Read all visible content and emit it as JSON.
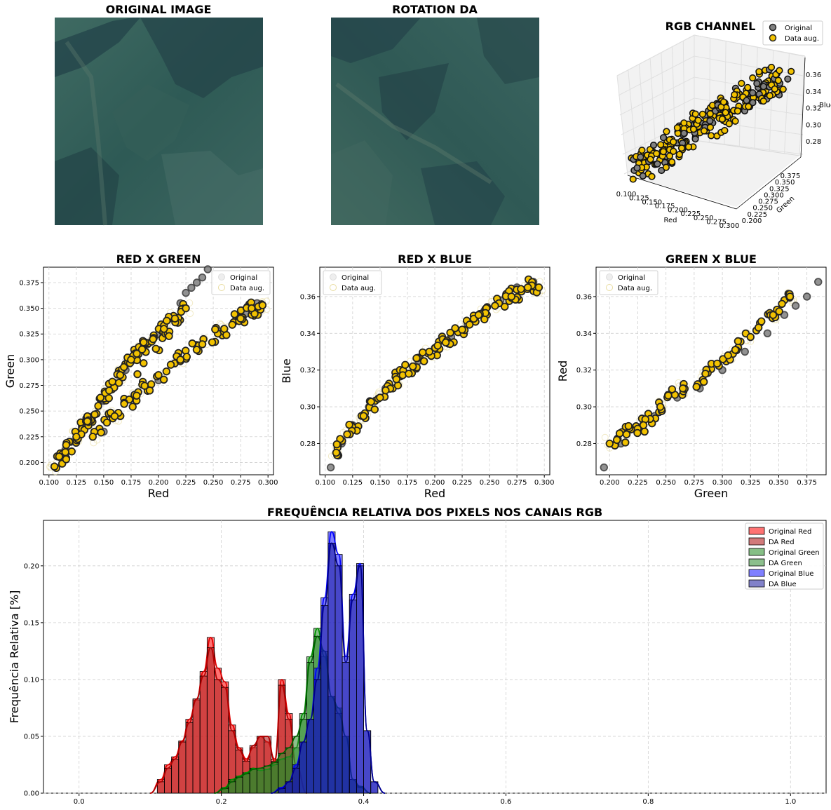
{
  "images": {
    "original_title": "ORIGINAL IMAGE",
    "rotation_title": "ROTATION DA"
  },
  "colors": {
    "original_marker": "#808080",
    "augmented_marker": "#f2c200",
    "marker_edge": "#000000",
    "red": "#ff0000",
    "red_da": "#b22222",
    "green": "#228b22",
    "green_da": "#2e8b2e",
    "blue": "#0000ff",
    "blue_da": "#1a1a9c",
    "grid": "#d0d0d0"
  },
  "chart_data": [
    {
      "type": "scatter3d",
      "title": "RGB CHANNEL",
      "xlabel": "Red",
      "ylabel": "Green",
      "zlabel": "Blue",
      "x_ticks": [
        "0.100",
        "0.125",
        "0.150",
        "0.175",
        "0.200",
        "0.225",
        "0.250",
        "0.275",
        "0.300"
      ],
      "y_ticks": [
        "0.200",
        "0.225",
        "0.250",
        "0.275",
        "0.300",
        "0.325",
        "0.350",
        "0.375"
      ],
      "z_ticks": [
        "0.28",
        "0.30",
        "0.32",
        "0.34",
        "0.36"
      ],
      "xlim": [
        0.1,
        0.3
      ],
      "ylim": [
        0.2,
        0.375
      ],
      "zlim": [
        0.27,
        0.37
      ],
      "legend": [
        "Original",
        "Data aug."
      ],
      "legend_position": "top-right",
      "series": [
        {
          "name": "Original",
          "trend": [
            [
              0.105,
              0.2,
              0.275
            ],
            [
              0.29,
              0.36,
              0.36
            ]
          ]
        },
        {
          "name": "Data aug.",
          "trend": [
            [
              0.105,
              0.2,
              0.275
            ],
            [
              0.29,
              0.36,
              0.36
            ]
          ]
        }
      ]
    },
    {
      "type": "scatter",
      "title": "RED X GREEN",
      "xlabel": "Red",
      "ylabel": "Green",
      "xlim": [
        0.095,
        0.305
      ],
      "ylim": [
        0.188,
        0.39
      ],
      "x_ticks": [
        0.1,
        0.125,
        0.15,
        0.175,
        0.2,
        0.225,
        0.25,
        0.275,
        0.3
      ],
      "x_tick_labels": [
        "0.100",
        "0.125",
        "0.150",
        "0.175",
        "0.200",
        "0.225",
        "0.250",
        "0.275",
        "0.300"
      ],
      "y_ticks": [
        0.2,
        0.225,
        0.25,
        0.275,
        0.3,
        0.325,
        0.35,
        0.375
      ],
      "y_tick_labels": [
        "0.200",
        "0.225",
        "0.250",
        "0.275",
        "0.300",
        "0.325",
        "0.350",
        "0.375"
      ],
      "legend": [
        "Original",
        "Data aug."
      ],
      "legend_position": "top-right",
      "grid": true,
      "series": [
        {
          "name": "Original",
          "x": [
            0.105,
            0.11,
            0.115,
            0.12,
            0.13,
            0.14,
            0.15,
            0.16,
            0.17,
            0.18,
            0.19,
            0.2,
            0.21,
            0.22,
            0.225,
            0.23,
            0.235,
            0.24,
            0.245,
            0.15,
            0.165,
            0.18,
            0.2,
            0.22,
            0.24,
            0.26,
            0.28,
            0.29
          ],
          "y": [
            0.196,
            0.205,
            0.212,
            0.22,
            0.235,
            0.245,
            0.26,
            0.275,
            0.29,
            0.3,
            0.315,
            0.325,
            0.34,
            0.355,
            0.365,
            0.37,
            0.375,
            0.38,
            0.388,
            0.23,
            0.245,
            0.265,
            0.28,
            0.3,
            0.315,
            0.33,
            0.345,
            0.355
          ]
        },
        {
          "name": "Data aug.",
          "x": [
            0.105,
            0.115,
            0.125,
            0.135,
            0.145,
            0.155,
            0.165,
            0.175,
            0.185,
            0.195,
            0.205,
            0.215,
            0.225,
            0.14,
            0.16,
            0.18,
            0.2,
            0.22,
            0.24,
            0.26,
            0.275,
            0.285,
            0.295
          ],
          "y": [
            0.196,
            0.21,
            0.225,
            0.24,
            0.255,
            0.27,
            0.285,
            0.3,
            0.31,
            0.32,
            0.33,
            0.34,
            0.35,
            0.225,
            0.245,
            0.265,
            0.285,
            0.3,
            0.315,
            0.33,
            0.34,
            0.35,
            0.353
          ]
        }
      ]
    },
    {
      "type": "scatter",
      "title": "RED X BLUE",
      "xlabel": "Red",
      "ylabel": "Blue",
      "xlim": [
        0.095,
        0.305
      ],
      "ylim": [
        0.263,
        0.376
      ],
      "x_ticks": [
        0.1,
        0.125,
        0.15,
        0.175,
        0.2,
        0.225,
        0.25,
        0.275,
        0.3
      ],
      "x_tick_labels": [
        "0.100",
        "0.125",
        "0.150",
        "0.175",
        "0.200",
        "0.225",
        "0.250",
        "0.275",
        "0.300"
      ],
      "y_ticks": [
        0.28,
        0.3,
        0.32,
        0.34,
        0.36
      ],
      "y_tick_labels": [
        "0.28",
        "0.30",
        "0.32",
        "0.34",
        "0.36"
      ],
      "legend": [
        "Original",
        "Data aug."
      ],
      "legend_position": "top-left",
      "grid": true,
      "series": [
        {
          "name": "Original",
          "x": [
            0.105,
            0.115,
            0.125,
            0.14,
            0.155,
            0.17,
            0.185,
            0.2,
            0.215,
            0.23,
            0.245,
            0.26,
            0.275,
            0.29
          ],
          "y": [
            0.267,
            0.28,
            0.29,
            0.3,
            0.31,
            0.318,
            0.325,
            0.332,
            0.338,
            0.345,
            0.352,
            0.358,
            0.365,
            0.368
          ]
        },
        {
          "name": "Data aug.",
          "x": [
            0.11,
            0.12,
            0.135,
            0.15,
            0.165,
            0.18,
            0.195,
            0.21,
            0.225,
            0.24,
            0.255,
            0.27,
            0.285,
            0.295
          ],
          "y": [
            0.275,
            0.285,
            0.295,
            0.305,
            0.315,
            0.322,
            0.33,
            0.335,
            0.342,
            0.35,
            0.355,
            0.36,
            0.365,
            0.365
          ]
        }
      ]
    },
    {
      "type": "scatter",
      "title": "GREEN X BLUE",
      "xlabel": "Green",
      "ylabel": "Red",
      "xlim": [
        0.188,
        0.392
      ],
      "ylim": [
        0.263,
        0.376
      ],
      "x_ticks": [
        0.2,
        0.225,
        0.25,
        0.275,
        0.3,
        0.325,
        0.35,
        0.375
      ],
      "x_tick_labels": [
        "0.200",
        "0.225",
        "0.250",
        "0.275",
        "0.300",
        "0.325",
        "0.350",
        "0.375"
      ],
      "y_ticks": [
        0.28,
        0.3,
        0.32,
        0.34,
        0.36
      ],
      "y_tick_labels": [
        "0.28",
        "0.30",
        "0.32",
        "0.34",
        "0.36"
      ],
      "legend": [
        "Original",
        "Data aug."
      ],
      "legend_position": "top-left",
      "grid": true,
      "series": [
        {
          "name": "Original",
          "x": [
            0.195,
            0.21,
            0.225,
            0.24,
            0.26,
            0.28,
            0.3,
            0.32,
            0.34,
            0.355,
            0.365,
            0.375,
            0.385
          ],
          "y": [
            0.267,
            0.28,
            0.288,
            0.295,
            0.305,
            0.31,
            0.32,
            0.33,
            0.34,
            0.35,
            0.355,
            0.36,
            0.368
          ]
        },
        {
          "name": "Data aug.",
          "x": [
            0.2,
            0.215,
            0.23,
            0.245,
            0.265,
            0.285,
            0.305,
            0.325,
            0.345,
            0.36
          ],
          "y": [
            0.28,
            0.285,
            0.29,
            0.3,
            0.31,
            0.318,
            0.328,
            0.338,
            0.35,
            0.36
          ]
        }
      ]
    },
    {
      "type": "histogram",
      "title": "FREQUÊNCIA RELATIVA DOS PIXELS NOS CANAIS RGB",
      "ylabel": "Frequência Relativa [%]",
      "xlabel": "",
      "xlim": [
        -0.05,
        1.05
      ],
      "ylim": [
        0,
        0.24
      ],
      "x_ticks": [
        0,
        0.2,
        0.4,
        0.6,
        0.8,
        1.0
      ],
      "x_tick_labels": [
        "0.0",
        "0.2",
        "0.4",
        "0.6",
        "0.8",
        "1.0"
      ],
      "y_ticks": [
        0,
        0.05,
        0.1,
        0.15,
        0.2
      ],
      "y_tick_labels": [
        "0.00",
        "0.05",
        "0.10",
        "0.15",
        "0.20"
      ],
      "legend_position": "top-right",
      "grid": true,
      "bin_width": 0.01,
      "series": [
        {
          "name": "Original Red",
          "bin_start": 0.11,
          "values": [
            0.012,
            0.025,
            0.032,
            0.046,
            0.065,
            0.082,
            0.107,
            0.137,
            0.11,
            0.098,
            0.06,
            0.04,
            0.03,
            0.04,
            0.05,
            0.045,
            0.03,
            0.1,
            0.07,
            0.025
          ]
        },
        {
          "name": "DA Red",
          "bin_start": 0.11,
          "values": [
            0.01,
            0.022,
            0.03,
            0.045,
            0.062,
            0.083,
            0.103,
            0.128,
            0.1,
            0.093,
            0.055,
            0.038,
            0.028,
            0.042,
            0.05,
            0.05,
            0.028,
            0.095,
            0.065,
            0.025
          ]
        },
        {
          "name": "Original Green",
          "bin_start": 0.2,
          "values": [
            0.005,
            0.012,
            0.015,
            0.018,
            0.022,
            0.02,
            0.021,
            0.025,
            0.03,
            0.032,
            0.04,
            0.07,
            0.12,
            0.145,
            0.12,
            0.085,
            0.075,
            0.05,
            0.012,
            0.006
          ]
        },
        {
          "name": "DA Green",
          "bin_start": 0.2,
          "values": [
            0.004,
            0.01,
            0.014,
            0.017,
            0.021,
            0.022,
            0.024,
            0.027,
            0.035,
            0.04,
            0.05,
            0.065,
            0.115,
            0.138,
            0.125,
            0.085,
            0.07,
            0.05,
            0.012,
            0.005
          ]
        },
        {
          "name": "Original Blue",
          "bin_start": 0.28,
          "values": [
            0.005,
            0.01,
            0.025,
            0.045,
            0.065,
            0.11,
            0.172,
            0.23,
            0.21,
            0.12,
            0.175,
            0.202,
            0.055,
            0.01
          ]
        },
        {
          "name": "DA Blue",
          "bin_start": 0.28,
          "values": [
            0.004,
            0.01,
            0.022,
            0.045,
            0.065,
            0.1,
            0.165,
            0.22,
            0.2,
            0.115,
            0.17,
            0.2,
            0.055,
            0.01
          ]
        }
      ]
    }
  ]
}
